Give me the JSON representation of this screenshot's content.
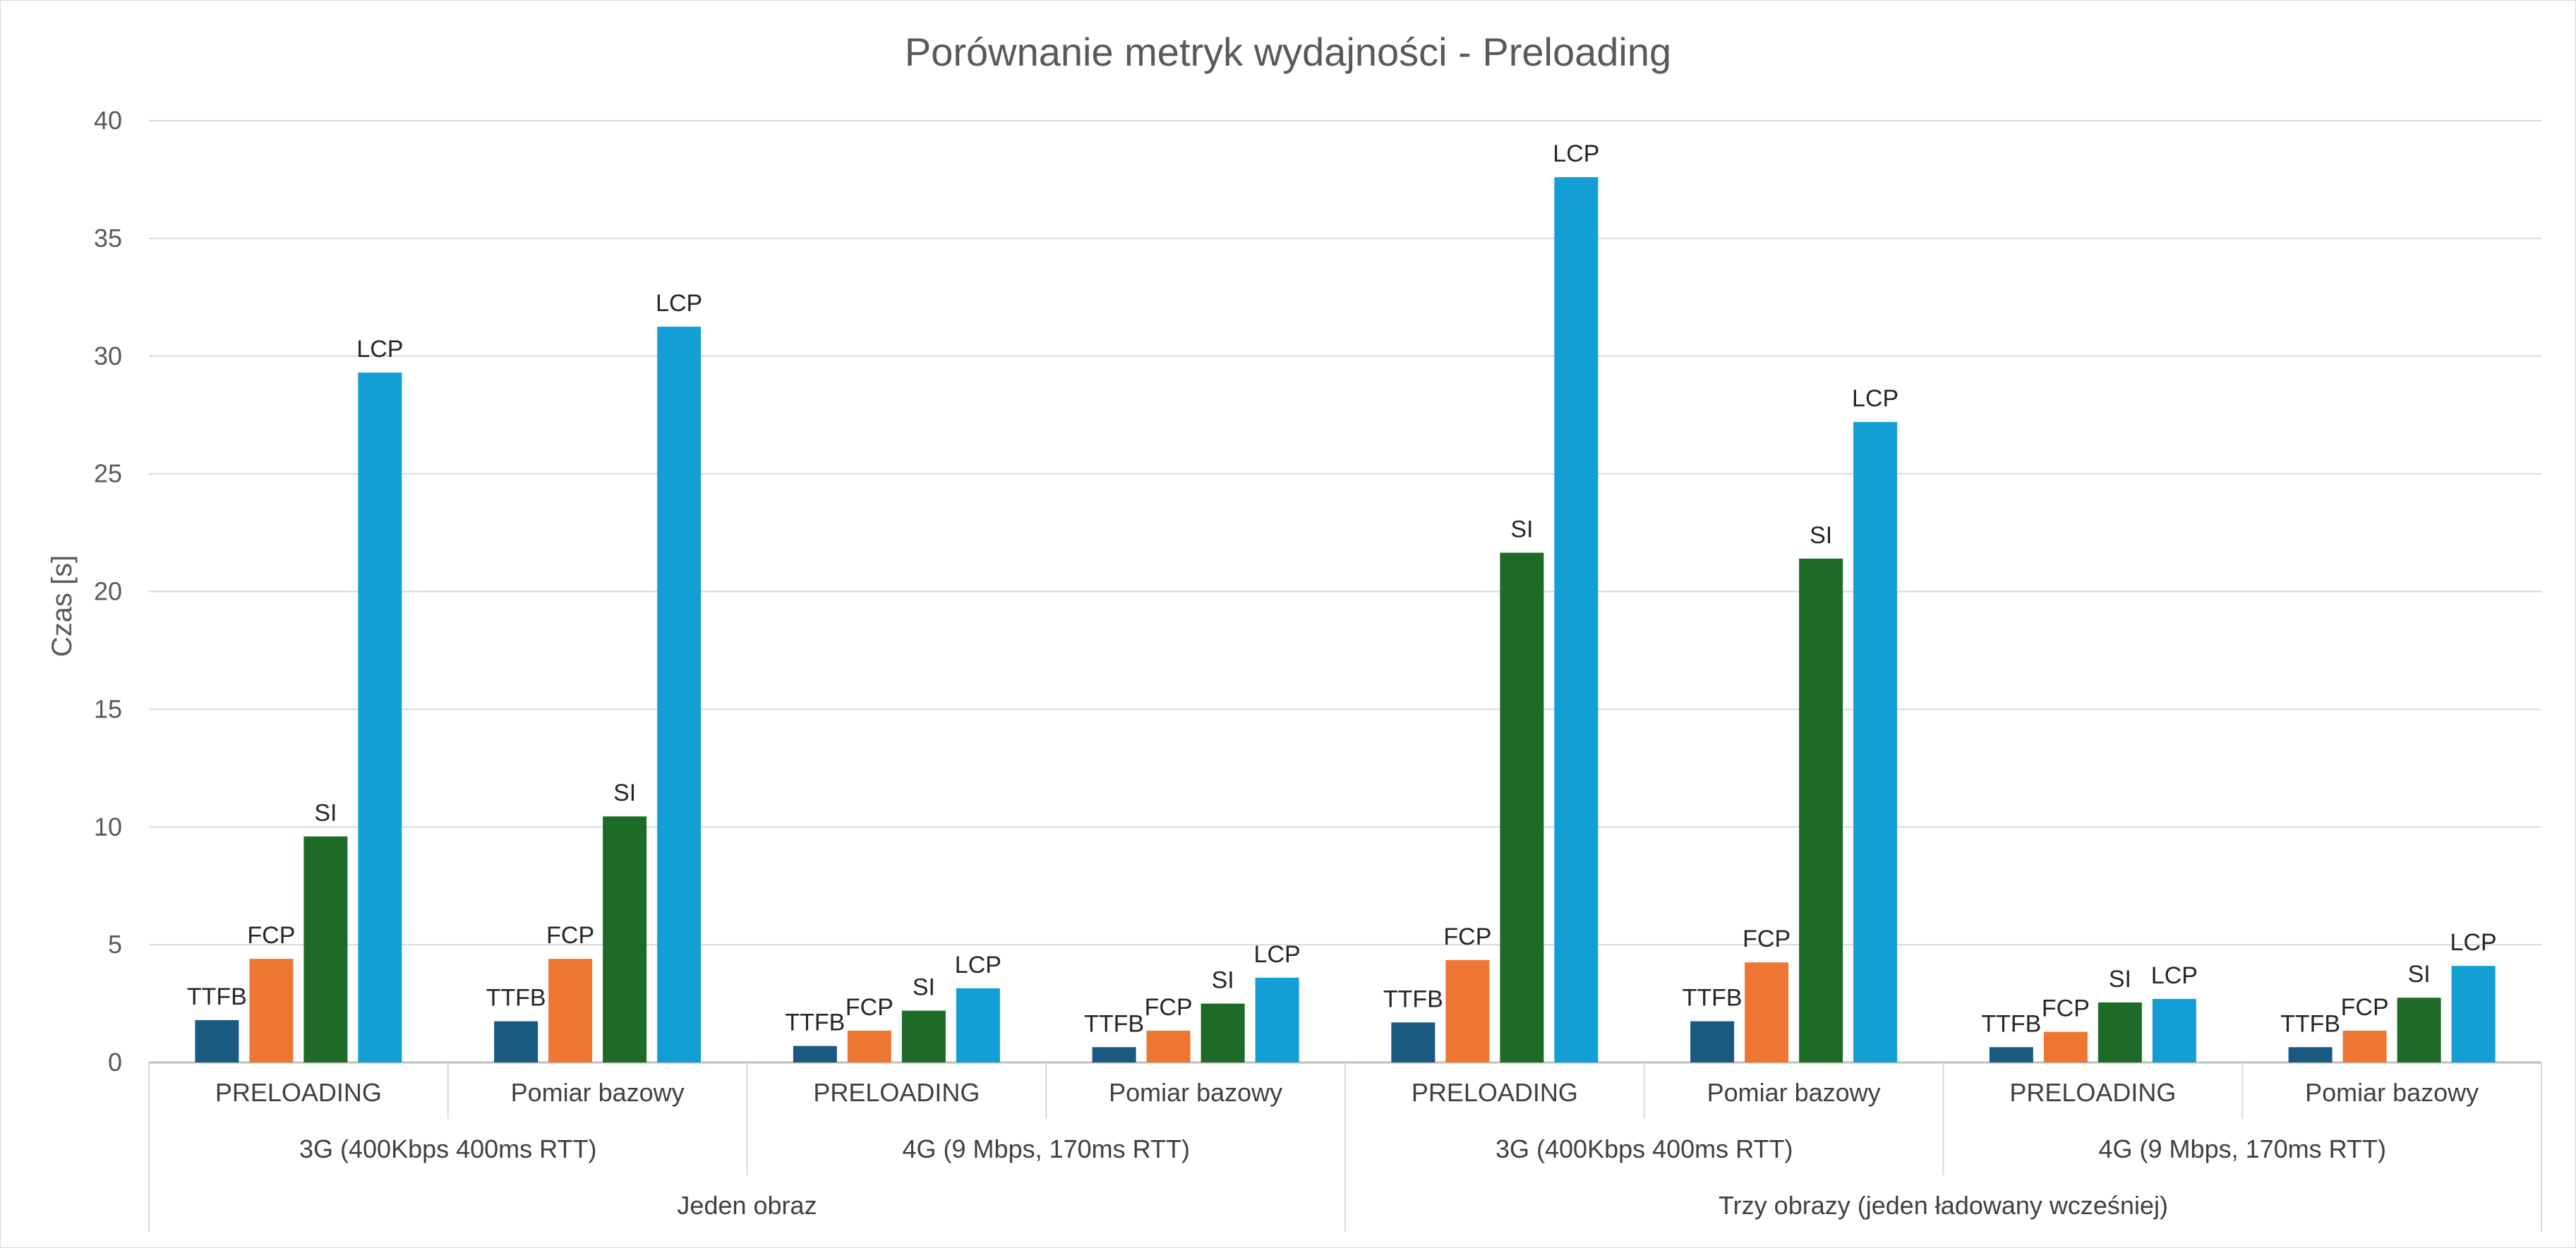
{
  "chart_data": {
    "type": "bar",
    "title": "Porównanie metryk wydajności - Preloading",
    "ylabel": "Czas [s]",
    "xlabel": "",
    "ylim": [
      0,
      40
    ],
    "yticks": [
      0,
      5,
      10,
      15,
      20,
      25,
      30,
      35,
      40
    ],
    "grid": true,
    "legend": "none",
    "categories": [
      [
        "Jeden obraz",
        "3G (400Kbps 400ms RTT)",
        "PRELOADING"
      ],
      [
        "Jeden obraz",
        "3G (400Kbps 400ms RTT)",
        "Pomiar bazowy"
      ],
      [
        "Jeden obraz",
        "4G (9 Mbps, 170ms RTT)",
        "PRELOADING"
      ],
      [
        "Jeden obraz",
        "4G (9 Mbps, 170ms RTT)",
        "Pomiar bazowy"
      ],
      [
        "Trzy obrazy (jeden ładowany wcześniej)",
        "3G (400Kbps 400ms RTT)",
        "PRELOADING"
      ],
      [
        "Trzy obrazy (jeden ładowany wcześniej)",
        "3G (400Kbps 400ms RTT)",
        "Pomiar bazowy"
      ],
      [
        "Trzy obrazy (jeden ładowany wcześniej)",
        "4G (9 Mbps, 170ms RTT)",
        "PRELOADING"
      ],
      [
        "Trzy obrazy (jeden ładowany wcześniej)",
        "4G (9 Mbps, 170ms RTT)",
        "Pomiar bazowy"
      ]
    ],
    "series": [
      {
        "name": "TTFB",
        "color": "#1a5a80",
        "values": [
          1.8,
          1.75,
          0.7,
          0.65,
          1.7,
          1.75,
          0.65,
          0.65
        ]
      },
      {
        "name": "FCP",
        "color": "#ee7633",
        "values": [
          4.4,
          4.4,
          1.35,
          1.35,
          4.35,
          4.25,
          1.3,
          1.35
        ]
      },
      {
        "name": "SI",
        "color": "#1e6b28",
        "values": [
          9.6,
          10.45,
          2.2,
          2.5,
          21.65,
          21.4,
          2.55,
          2.75
        ]
      },
      {
        "name": "LCP",
        "color": "#139fd6",
        "values": [
          29.3,
          31.25,
          3.15,
          3.6,
          37.6,
          27.2,
          2.7,
          4.1
        ]
      }
    ]
  }
}
